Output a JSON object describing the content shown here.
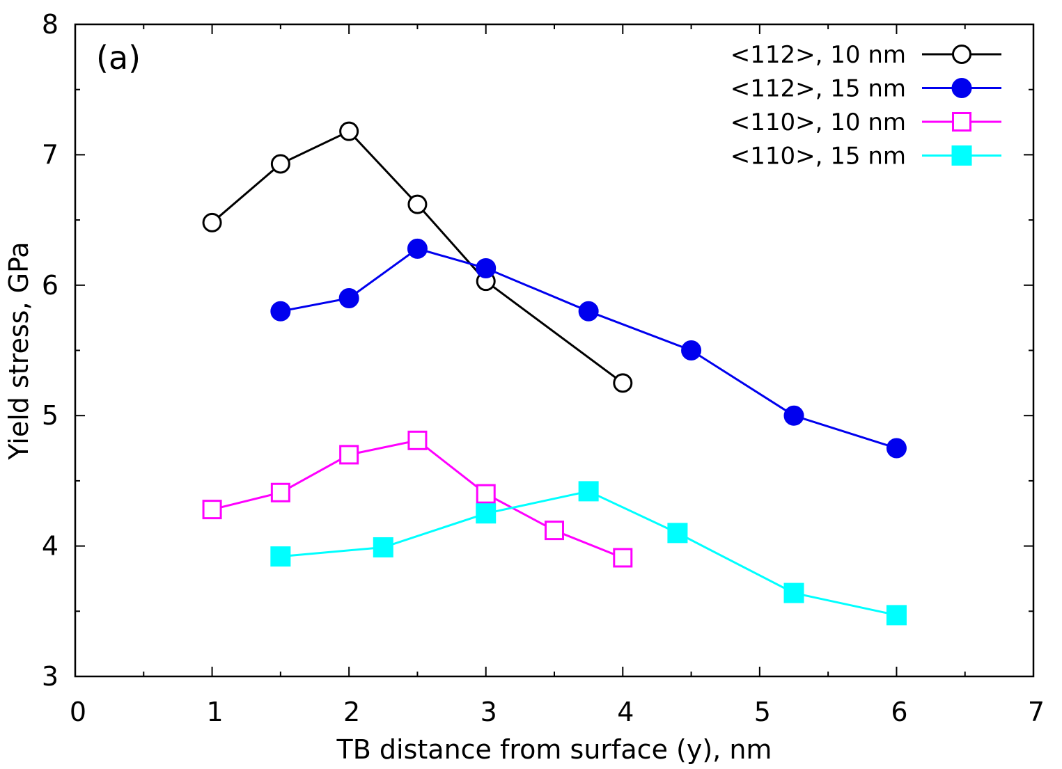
{
  "chart_data": {
    "type": "line",
    "annotation": "(a)",
    "xlabel": "TB distance from surface (y), nm",
    "ylabel": "Yield stress, GPa",
    "xlim": [
      0,
      7
    ],
    "ylim": [
      3,
      8
    ],
    "xticks": [
      0,
      1,
      2,
      3,
      4,
      5,
      6,
      7
    ],
    "yticks": [
      3,
      4,
      5,
      6,
      7,
      8
    ],
    "x_minor_step": 0.5,
    "y_minor_step": 0.5,
    "grid": false,
    "legend_position": "top-right",
    "series": [
      {
        "name": "<112>, 10 nm",
        "color": "#000000",
        "marker": "open-circle",
        "x": [
          1,
          1.5,
          2,
          2.5,
          3,
          4
        ],
        "y": [
          6.48,
          6.93,
          7.18,
          6.62,
          6.03,
          5.25
        ]
      },
      {
        "name": "<112>, 15 nm",
        "color": "#0000ee",
        "marker": "filled-circle",
        "x": [
          1.5,
          2,
          2.5,
          3,
          3.75,
          4.5,
          5.25,
          6
        ],
        "y": [
          5.8,
          5.9,
          6.28,
          6.13,
          5.8,
          5.5,
          5.0,
          4.75
        ]
      },
      {
        "name": "<110>, 10 nm",
        "color": "#ff00ff",
        "marker": "open-square",
        "x": [
          1,
          1.5,
          2,
          2.5,
          3,
          3.5,
          4
        ],
        "y": [
          4.28,
          4.41,
          4.7,
          4.81,
          4.4,
          4.12,
          3.91
        ]
      },
      {
        "name": "<110>, 15 nm",
        "color": "#00ffff",
        "marker": "filled-square",
        "x": [
          1.5,
          2.25,
          3,
          3.75,
          4.4,
          5.25,
          6
        ],
        "y": [
          3.92,
          3.99,
          4.25,
          4.42,
          4.1,
          3.64,
          3.47
        ]
      }
    ]
  }
}
